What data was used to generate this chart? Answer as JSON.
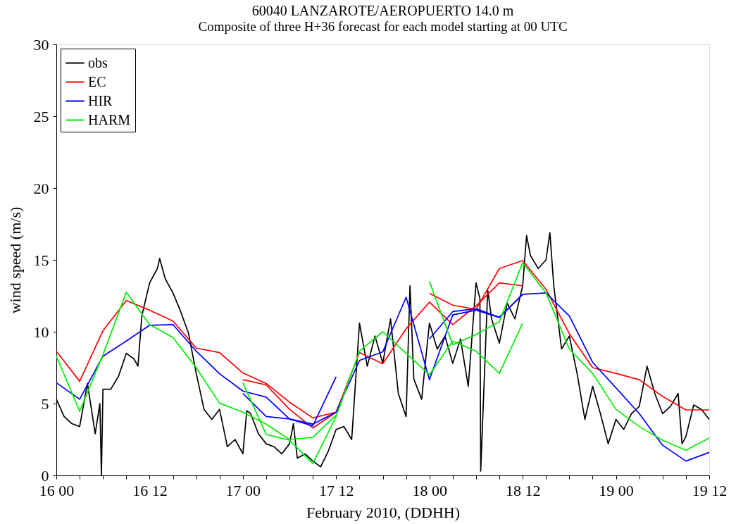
{
  "chart_data": {
    "type": "line",
    "title": "60040 LANZAROTE/AEROPUERTO  14.0 m",
    "subtitle": "Composite of three H+36 forecast for each model starting at 00 UTC",
    "xlabel": "February 2010, (DDHH)",
    "ylabel": "wind speed (m/s)",
    "xlim": [
      "2010-02-16T00:00",
      "2010-02-19T12:00"
    ],
    "ylim": [
      0,
      30
    ],
    "xticks": [
      {
        "value": "2010-02-16T00:00",
        "label": "16 00"
      },
      {
        "value": "2010-02-16T03:00",
        "label": null
      },
      {
        "value": "2010-02-16T06:00",
        "label": null
      },
      {
        "value": "2010-02-16T09:00",
        "label": null
      },
      {
        "value": "2010-02-16T12:00",
        "label": "16 12"
      },
      {
        "value": "2010-02-16T15:00",
        "label": null
      },
      {
        "value": "2010-02-16T18:00",
        "label": null
      },
      {
        "value": "2010-02-16T21:00",
        "label": null
      },
      {
        "value": "2010-02-17T00:00",
        "label": "17 00"
      },
      {
        "value": "2010-02-17T03:00",
        "label": null
      },
      {
        "value": "2010-02-17T06:00",
        "label": null
      },
      {
        "value": "2010-02-17T09:00",
        "label": null
      },
      {
        "value": "2010-02-17T12:00",
        "label": "17 12"
      },
      {
        "value": "2010-02-17T15:00",
        "label": null
      },
      {
        "value": "2010-02-17T18:00",
        "label": null
      },
      {
        "value": "2010-02-17T21:00",
        "label": null
      },
      {
        "value": "2010-02-18T00:00",
        "label": "18 00"
      },
      {
        "value": "2010-02-18T03:00",
        "label": null
      },
      {
        "value": "2010-02-18T06:00",
        "label": null
      },
      {
        "value": "2010-02-18T09:00",
        "label": null
      },
      {
        "value": "2010-02-18T12:00",
        "label": "18 12"
      },
      {
        "value": "2010-02-18T15:00",
        "label": null
      },
      {
        "value": "2010-02-18T18:00",
        "label": null
      },
      {
        "value": "2010-02-18T21:00",
        "label": null
      },
      {
        "value": "2010-02-19T00:00",
        "label": "19 00"
      },
      {
        "value": "2010-02-19T03:00",
        "label": null
      },
      {
        "value": "2010-02-19T06:00",
        "label": null
      },
      {
        "value": "2010-02-19T09:00",
        "label": null
      },
      {
        "value": "2010-02-19T12:00",
        "label": "19 12"
      }
    ],
    "yticks": [
      0,
      5,
      10,
      15,
      20,
      25,
      30
    ],
    "grid": false,
    "legend": "top left",
    "marker": "none",
    "line_style": "solid",
    "series": [
      {
        "name": "obs",
        "color": "#000000",
        "x": [
          "2010-02-16T00:00",
          "2010-02-16T01:00",
          "2010-02-16T02:00",
          "2010-02-16T03:00",
          "2010-02-16T04:00",
          "2010-02-16T05:00",
          "2010-02-16T05:36",
          "2010-02-16T05:48",
          "2010-02-16T06:00",
          "2010-02-16T07:00",
          "2010-02-16T08:00",
          "2010-02-16T09:00",
          "2010-02-16T10:00",
          "2010-02-16T10:30",
          "2010-02-16T11:00",
          "2010-02-16T12:00",
          "2010-02-16T13:00",
          "2010-02-16T13:18",
          "2010-02-16T14:00",
          "2010-02-16T15:00",
          "2010-02-16T16:00",
          "2010-02-16T17:00",
          "2010-02-16T18:00",
          "2010-02-16T19:00",
          "2010-02-16T20:00",
          "2010-02-16T21:00",
          "2010-02-16T22:00",
          "2010-02-16T23:00",
          "2010-02-17T00:00",
          "2010-02-17T00:30",
          "2010-02-17T01:00",
          "2010-02-17T02:00",
          "2010-02-17T03:00",
          "2010-02-17T04:00",
          "2010-02-17T05:00",
          "2010-02-17T06:00",
          "2010-02-17T06:30",
          "2010-02-17T07:00",
          "2010-02-17T08:00",
          "2010-02-17T09:00",
          "2010-02-17T10:00",
          "2010-02-17T11:00",
          "2010-02-17T12:00",
          "2010-02-17T13:00",
          "2010-02-17T14:00",
          "2010-02-17T15:00",
          "2010-02-17T16:00",
          "2010-02-17T17:00",
          "2010-02-17T18:00",
          "2010-02-17T19:00",
          "2010-02-17T20:00",
          "2010-02-17T21:00",
          "2010-02-17T21:30",
          "2010-02-17T22:00",
          "2010-02-17T23:00",
          "2010-02-18T00:00",
          "2010-02-18T01:00",
          "2010-02-18T02:00",
          "2010-02-18T03:00",
          "2010-02-18T04:00",
          "2010-02-18T05:00",
          "2010-02-18T06:00",
          "2010-02-18T06:30",
          "2010-02-18T06:36",
          "2010-02-18T07:30",
          "2010-02-18T08:00",
          "2010-02-18T09:00",
          "2010-02-18T10:00",
          "2010-02-18T11:00",
          "2010-02-18T12:00",
          "2010-02-18T12:30",
          "2010-02-18T13:00",
          "2010-02-18T14:00",
          "2010-02-18T15:00",
          "2010-02-18T15:30",
          "2010-02-18T16:00",
          "2010-02-18T17:00",
          "2010-02-18T18:00",
          "2010-02-18T19:00",
          "2010-02-18T20:00",
          "2010-02-18T21:00",
          "2010-02-18T22:00",
          "2010-02-18T23:00",
          "2010-02-19T00:00",
          "2010-02-19T01:00",
          "2010-02-19T02:00",
          "2010-02-19T03:00",
          "2010-02-19T04:00",
          "2010-02-19T05:00",
          "2010-02-19T06:00",
          "2010-02-19T07:00",
          "2010-02-19T08:00",
          "2010-02-19T08:30",
          "2010-02-19T09:00",
          "2010-02-19T10:00",
          "2010-02-19T11:00",
          "2010-02-19T12:00"
        ],
        "values": [
          5.3,
          4.1,
          3.6,
          3.4,
          6.4,
          2.9,
          5.0,
          0,
          6.0,
          6.0,
          6.9,
          8.5,
          8.1,
          7.6,
          11.1,
          13.4,
          14.4,
          15.1,
          13.7,
          12.7,
          11.4,
          9.9,
          7.1,
          4.6,
          3.9,
          4.6,
          2.0,
          2.5,
          1.5,
          4.5,
          4.3,
          2.9,
          2.2,
          2.0,
          1.5,
          2.2,
          3.6,
          1.2,
          1.5,
          1.0,
          0.6,
          1.7,
          3.2,
          3.4,
          2.5,
          10.6,
          7.6,
          9.7,
          7.8,
          10.9,
          5.7,
          4.1,
          13.2,
          6.7,
          5.3,
          10.6,
          8.8,
          9.7,
          7.8,
          9.5,
          6.2,
          13.4,
          12.3,
          0.3,
          12.9,
          10.9,
          9.2,
          12.0,
          10.9,
          13.2,
          16.7,
          15.3,
          14.4,
          15.0,
          16.9,
          13.2,
          8.8,
          9.7,
          7.1,
          3.9,
          6.2,
          4.3,
          2.2,
          3.9,
          3.2,
          4.3,
          4.8,
          7.6,
          5.7,
          4.3,
          4.8,
          5.7,
          2.2,
          2.7,
          4.9,
          4.6,
          3.9
        ]
      },
      {
        "name": "EC",
        "color": "#ff0000",
        "x": [
          "2010-02-16T00:00",
          "2010-02-16T03:00",
          "2010-02-16T06:00",
          "2010-02-16T09:00",
          "2010-02-16T12:00",
          "2010-02-16T15:00",
          "2010-02-16T18:00",
          "2010-02-16T21:00",
          "2010-02-17T00:00",
          "2010-02-17T03:00",
          "2010-02-17T06:00",
          "2010-02-17T09:00",
          "2010-02-17T12:00",
          null,
          "2010-02-17T00:00",
          "2010-02-17T03:00",
          "2010-02-17T06:00",
          "2010-02-17T09:00",
          "2010-02-17T12:00",
          "2010-02-17T15:00",
          "2010-02-17T18:00",
          "2010-02-17T21:00",
          "2010-02-18T00:00",
          "2010-02-18T03:00",
          "2010-02-18T06:00",
          "2010-02-18T09:00",
          "2010-02-18T12:00",
          null,
          "2010-02-18T00:00",
          "2010-02-18T03:00",
          "2010-02-18T06:00",
          "2010-02-18T09:00",
          "2010-02-18T12:00",
          "2010-02-18T15:00",
          "2010-02-18T18:00",
          "2010-02-18T21:00",
          "2010-02-19T00:00",
          "2010-02-19T03:00",
          "2010-02-19T06:00",
          "2010-02-19T09:00",
          "2010-02-19T12:00"
        ],
        "values": [
          8.65,
          6.55,
          10.07,
          12.17,
          11.5,
          10.75,
          8.86,
          8.55,
          7.13,
          6.4,
          5.1,
          4.0,
          4.4,
          null,
          6.66,
          6.3,
          4.6,
          3.3,
          4.4,
          8.55,
          7.77,
          10.2,
          12.06,
          10.5,
          11.8,
          13.4,
          13.2,
          null,
          12.67,
          11.85,
          11.55,
          14.4,
          14.95,
          12.95,
          9.87,
          7.5,
          7.1,
          6.66,
          5.5,
          4.56,
          4.56
        ]
      },
      {
        "name": "HIR",
        "color": "#0000ff",
        "x": [
          "2010-02-16T00:00",
          "2010-02-16T03:00",
          "2010-02-16T06:00",
          "2010-02-16T09:00",
          "2010-02-16T12:00",
          "2010-02-16T15:00",
          "2010-02-16T18:00",
          "2010-02-16T21:00",
          "2010-02-17T00:00",
          "2010-02-17T03:00",
          "2010-02-17T06:00",
          "2010-02-17T09:00",
          "2010-02-17T12:00",
          null,
          "2010-02-17T00:00",
          "2010-02-17T03:00",
          "2010-02-17T06:00",
          "2010-02-17T09:00",
          "2010-02-17T12:00",
          "2010-02-17T15:00",
          "2010-02-17T18:00",
          "2010-02-17T21:00",
          "2010-02-18T00:00",
          "2010-02-18T03:00",
          "2010-02-18T06:00",
          "2010-02-18T09:00",
          "2010-02-18T12:00",
          null,
          "2010-02-18T00:00",
          "2010-02-18T03:00",
          "2010-02-18T06:00",
          "2010-02-18T09:00",
          "2010-02-18T12:00",
          "2010-02-18T15:00",
          "2010-02-18T18:00",
          "2010-02-18T21:00",
          "2010-02-19T00:00",
          "2010-02-19T03:00",
          "2010-02-19T06:00",
          "2010-02-19T09:00",
          "2010-02-19T12:00"
        ],
        "values": [
          6.45,
          5.3,
          8.3,
          9.35,
          10.45,
          10.5,
          8.65,
          7.08,
          5.87,
          5.45,
          3.93,
          3.45,
          6.87,
          null,
          5.7,
          4.1,
          3.93,
          3.57,
          4.4,
          8.0,
          8.6,
          12.4,
          6.66,
          11.17,
          11.5,
          11.0,
          12.6,
          null,
          9.5,
          11.4,
          11.6,
          11.0,
          12.6,
          12.7,
          11.1,
          7.87,
          6.1,
          4.3,
          2.1,
          1.0,
          1.6
        ]
      },
      {
        "name": "HARM",
        "color": "#00ee00",
        "x": [
          "2010-02-16T00:00",
          "2010-02-16T03:00",
          "2010-02-16T06:00",
          "2010-02-16T09:00",
          "2010-02-16T12:00",
          "2010-02-16T15:00",
          "2010-02-16T18:00",
          "2010-02-16T21:00",
          "2010-02-17T00:00",
          "2010-02-17T03:00",
          "2010-02-17T06:00",
          "2010-02-17T09:00",
          "2010-02-17T12:00",
          null,
          "2010-02-17T00:00",
          "2010-02-17T03:00",
          "2010-02-17T06:00",
          "2010-02-17T09:00",
          "2010-02-17T12:00",
          "2010-02-17T15:00",
          "2010-02-17T18:00",
          "2010-02-17T21:00",
          "2010-02-18T00:00",
          "2010-02-18T03:00",
          "2010-02-18T06:00",
          "2010-02-18T09:00",
          "2010-02-18T12:00",
          null,
          "2010-02-18T00:00",
          "2010-02-18T03:00",
          "2010-02-18T06:00",
          "2010-02-18T09:00",
          "2010-02-18T12:00",
          "2010-02-18T15:00",
          "2010-02-18T18:00",
          "2010-02-18T21:00",
          "2010-02-19T00:00",
          "2010-02-19T03:00",
          "2010-02-19T06:00",
          "2010-02-19T09:00",
          "2010-02-19T12:00"
        ],
        "values": [
          8.3,
          4.46,
          8.4,
          12.74,
          10.5,
          9.6,
          7.5,
          5.03,
          4.4,
          3.57,
          2.5,
          2.65,
          4.2,
          null,
          6.45,
          2.85,
          2.45,
          0.83,
          4.1,
          8.65,
          10.0,
          8.5,
          7.0,
          9.35,
          8.65,
          7.1,
          10.6,
          null,
          13.5,
          9.1,
          9.8,
          10.7,
          14.8,
          12.7,
          8.8,
          7.1,
          4.6,
          3.4,
          2.45,
          1.75,
          2.6
        ]
      }
    ]
  }
}
